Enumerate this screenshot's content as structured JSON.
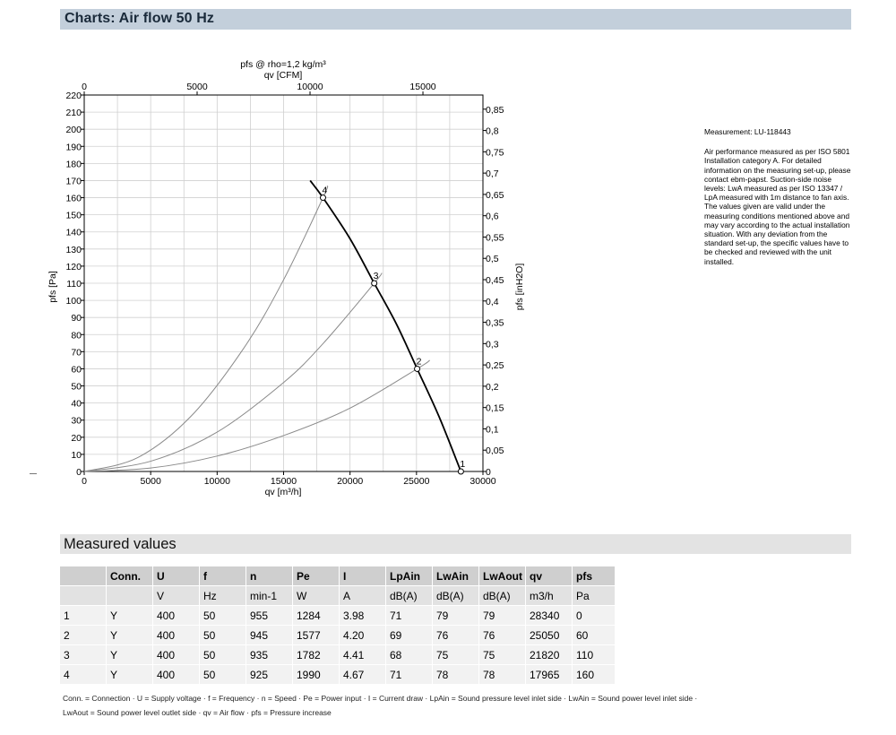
{
  "header": {
    "title": "Charts: Air flow 50 Hz"
  },
  "chart_data": {
    "type": "line",
    "title": "pfs @ rho=1,2 kg/m³",
    "xlabel": "qv [m³/h]",
    "xlabel_top": "qv [CFM]",
    "ylabel": "pfs [Pa]",
    "ylabel_right": "pfs [inH2O]",
    "xlim": [
      0,
      30000
    ],
    "ylim": [
      0,
      220
    ],
    "x_ticks": [
      "0",
      "5000",
      "10000",
      "15000",
      "20000",
      "25000",
      "30000"
    ],
    "y_ticks": [
      "0",
      "10",
      "20",
      "30",
      "40",
      "50",
      "60",
      "70",
      "80",
      "90",
      "100",
      "110",
      "120",
      "130",
      "140",
      "150",
      "160",
      "170",
      "180",
      "190",
      "200",
      "210",
      "220"
    ],
    "x_top_ticks": [
      "0",
      "5000",
      "10000",
      "15000"
    ],
    "x_top_values": [
      0,
      5000,
      10000,
      15000
    ],
    "y_right_ticks": [
      "0",
      "0,05",
      "0,1",
      "0,15",
      "0,2",
      "0,25",
      "0,3",
      "0,35",
      "0,4",
      "0,45",
      "0,5",
      "0,55",
      "0,6",
      "0,65",
      "0,7",
      "0,75",
      "0,8",
      "0,85"
    ],
    "y_right_values": [
      0,
      0.05,
      0.1,
      0.15,
      0.2,
      0.25,
      0.3,
      0.35,
      0.4,
      0.45,
      0.5,
      0.55,
      0.6,
      0.65,
      0.7,
      0.75,
      0.8,
      0.85
    ],
    "grid": true,
    "fan_curve": {
      "x": [
        17000,
        17965,
        20000,
        21820,
        23500,
        25050,
        26700,
        28340
      ],
      "y": [
        170,
        160,
        136,
        110,
        86,
        60,
        32,
        0
      ]
    },
    "system_curves": [
      {
        "x": [
          0,
          4000,
          8000,
          12000,
          15000,
          17965,
          18300
        ],
        "y": [
          0,
          8,
          32,
          72,
          112,
          160,
          167
        ]
      },
      {
        "x": [
          0,
          5000,
          10000,
          15000,
          18000,
          21820,
          22400
        ],
        "y": [
          0,
          6,
          23,
          52,
          75,
          110,
          116
        ]
      },
      {
        "x": [
          0,
          5000,
          10000,
          15000,
          20000,
          25050,
          26000
        ],
        "y": [
          0,
          2,
          9,
          21,
          37,
          60,
          65
        ]
      }
    ],
    "points": [
      {
        "label": "1",
        "x": 28340,
        "y": 0
      },
      {
        "label": "2",
        "x": 25050,
        "y": 60
      },
      {
        "label": "3",
        "x": 21820,
        "y": 110
      },
      {
        "label": "4",
        "x": 17965,
        "y": 160
      }
    ]
  },
  "side_note": {
    "measurement": "Measurement: LU-118443",
    "text": "Air performance measured as per ISO 5801 Installation category A. For detailed information on the measuring set-up, please contact ebm-papst. Suction-side noise levels: LwA measured as per ISO 13347 / LpA measured with 1m distance to fan axis. The values given are valid under the measuring conditions mentioned above and may vary according to the actual installation situation. With any deviation from the standard set-up, the specific values have to be checked and reviewed with the unit installed."
  },
  "measured": {
    "title": "Measured values",
    "headers": [
      "",
      "Conn.",
      "U",
      "f",
      "n",
      "Pe",
      "I",
      "LpAin",
      "LwAin",
      "LwAout",
      "qv",
      "pfs"
    ],
    "units": [
      "",
      "",
      "V",
      "Hz",
      "min-1",
      "W",
      "A",
      "dB(A)",
      "dB(A)",
      "dB(A)",
      "m3/h",
      "Pa"
    ],
    "rows": [
      [
        "1",
        "Y",
        "400",
        "50",
        "955",
        "1284",
        "3.98",
        "71",
        "79",
        "79",
        "28340",
        "0"
      ],
      [
        "2",
        "Y",
        "400",
        "50",
        "945",
        "1577",
        "4.20",
        "69",
        "76",
        "76",
        "25050",
        "60"
      ],
      [
        "3",
        "Y",
        "400",
        "50",
        "935",
        "1782",
        "4.41",
        "68",
        "75",
        "75",
        "21820",
        "110"
      ],
      [
        "4",
        "Y",
        "400",
        "50",
        "925",
        "1990",
        "4.67",
        "71",
        "78",
        "78",
        "17965",
        "160"
      ]
    ]
  },
  "legend": {
    "line1": "Conn. = Connection · U = Supply voltage · f = Frequency · n = Speed · Pe = Power input · I = Current draw · LpAin = Sound pressure level inlet side · LwAin = Sound power level inlet side ·",
    "line2": "LwAout = Sound power level outlet side · qv = Air flow · pfs = Pressure increase"
  }
}
